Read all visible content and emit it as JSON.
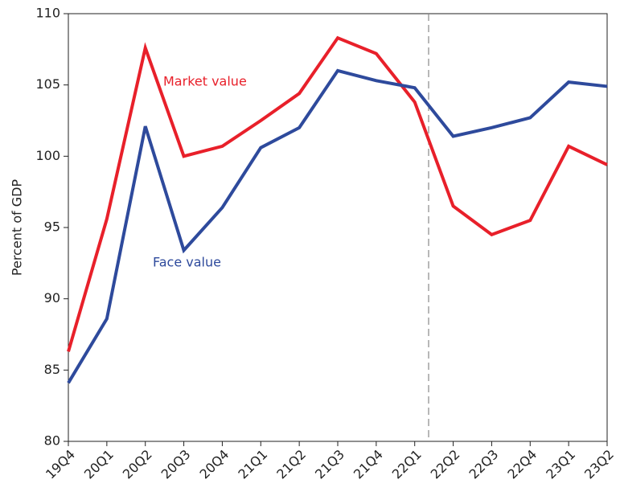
{
  "chart_data": {
    "type": "line",
    "y_label": "Percent of GDP",
    "categories": [
      "19Q4",
      "20Q1",
      "20Q2",
      "20Q3",
      "20Q4",
      "21Q1",
      "21Q2",
      "21Q3",
      "21Q4",
      "22Q1",
      "22Q2",
      "22Q3",
      "22Q4",
      "23Q1",
      "23Q2"
    ],
    "series": [
      {
        "name": "Market value",
        "color": "#e8202a",
        "values": [
          86.3,
          95.6,
          107.6,
          100.0,
          100.7,
          102.5,
          104.4,
          108.3,
          107.2,
          103.8,
          96.5,
          94.5,
          95.5,
          100.7,
          99.4
        ]
      },
      {
        "name": "Face value",
        "color": "#2e4a9c",
        "values": [
          84.1,
          88.6,
          102.1,
          93.4,
          96.4,
          100.6,
          102.0,
          106.0,
          105.3,
          104.8,
          101.4,
          102.0,
          102.7,
          105.2,
          104.9
        ]
      }
    ],
    "ylim": [
      80,
      110
    ],
    "yticks": [
      80,
      85,
      90,
      95,
      100,
      105,
      110
    ]
  }
}
